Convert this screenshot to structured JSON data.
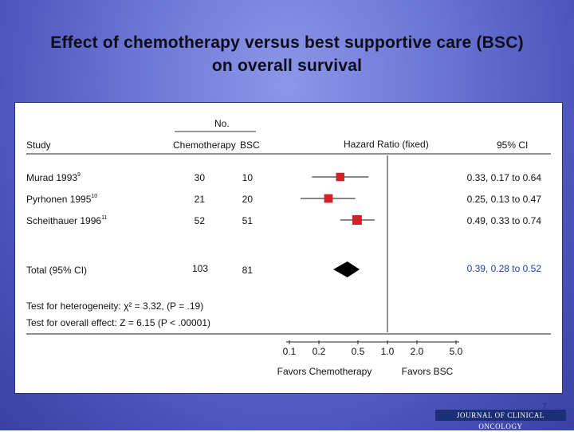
{
  "slide": {
    "title_line1": "Effect of chemotherapy versus best supportive care (BSC)",
    "title_line2": "on overall survival",
    "slide_number": "7",
    "journal_logo": "JOURNAL OF CLINICAL ONCOLOGY"
  },
  "colors": {
    "marker": "#d42027",
    "pooled": "#000000",
    "total_ci_text": "#1f3fa6"
  },
  "chart_data": {
    "type": "forest",
    "headers": {
      "study": "Study",
      "no_group": "No.",
      "chemotherapy": "Chemotherapy",
      "bsc": "BSC",
      "effect": "Hazard Ratio (fixed)",
      "ci": "95% CI"
    },
    "studies": [
      {
        "name": "Murad 1993",
        "ref": "9",
        "chemo_n": "30",
        "bsc_n": "10",
        "hr": 0.33,
        "lower": 0.17,
        "upper": 0.64,
        "ci_text": "0.33, 0.17 to 0.64",
        "weight": 0.7
      },
      {
        "name": "Pyrhonen 1995",
        "ref": "10",
        "chemo_n": "21",
        "bsc_n": "20",
        "hr": 0.25,
        "lower": 0.13,
        "upper": 0.47,
        "ci_text": "0.25, 0.13 to 0.47",
        "weight": 0.75
      },
      {
        "name": "Scheithauer 1996",
        "ref": "11",
        "chemo_n": "52",
        "bsc_n": "51",
        "hr": 0.49,
        "lower": 0.33,
        "upper": 0.74,
        "ci_text": "0.49, 0.33 to 0.74",
        "weight": 1.0
      }
    ],
    "total": {
      "label": "Total (95% CI)",
      "chemo_n": "103",
      "bsc_n": "81",
      "hr": 0.39,
      "lower": 0.28,
      "upper": 0.52,
      "ci_text": "0.39, 0.28 to 0.52"
    },
    "tests": {
      "heterogeneity": "Test for heterogeneity: χ² = 3.32, (P = .19)",
      "overall": "Test for overall effect: Z = 6.15 (P < .00001)"
    },
    "x_axis": {
      "scale": "log",
      "ticks": [
        0.1,
        0.2,
        0.5,
        1.0,
        2.0,
        5.0
      ],
      "tick_labels": [
        "0.1",
        "0.2",
        "0.5",
        "1.0",
        "2.0",
        "5.0"
      ],
      "reference": 1.0,
      "left_label": "Favors Chemotherapy",
      "right_label": "Favors BSC"
    }
  }
}
